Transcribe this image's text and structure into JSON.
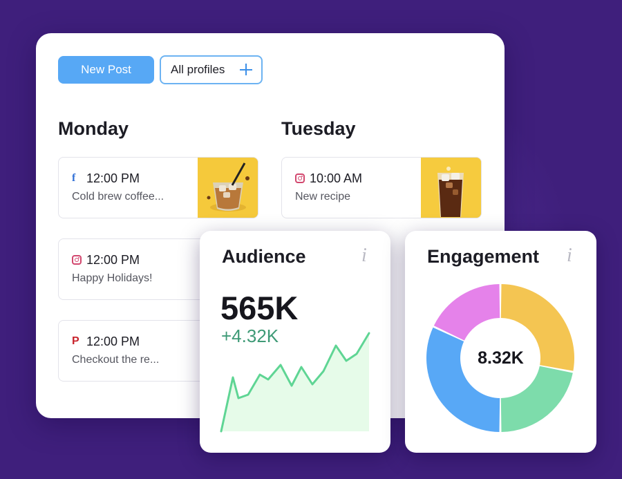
{
  "toolbar": {
    "new_post_label": "New Post",
    "profiles_label": "All profiles"
  },
  "columns": [
    {
      "day": "Monday",
      "posts": [
        {
          "network": "facebook",
          "icon": "facebook-icon",
          "time": "12:00 PM",
          "caption": "Cold brew coffee...",
          "has_thumb": true
        },
        {
          "network": "instagram",
          "icon": "instagram-icon",
          "time": "12:00 PM",
          "caption": "Happy Holidays!",
          "has_thumb": false
        },
        {
          "network": "pinterest",
          "icon": "pinterest-icon",
          "time": "12:00 PM",
          "caption": "Checkout the re...",
          "has_thumb": false
        }
      ]
    },
    {
      "day": "Tuesday",
      "posts": [
        {
          "network": "instagram",
          "icon": "instagram-icon",
          "time": "10:00 AM",
          "caption": "New recipe",
          "has_thumb": true
        }
      ]
    }
  ],
  "audience": {
    "title": "Audience",
    "value": "565K",
    "delta": "+4.32K",
    "line_color": "#5fd594",
    "fill_color": "#e6fbe9"
  },
  "engagement": {
    "title": "Engagement",
    "total": "8.32K",
    "slices": [
      {
        "color": "#f4c552",
        "share": 0.28
      },
      {
        "color": "#7ddcab",
        "share": 0.22
      },
      {
        "color": "#58a8f6",
        "share": 0.32
      },
      {
        "color": "#e582ea",
        "share": 0.18
      }
    ]
  },
  "colors": {
    "background": "#3f1f7c",
    "accent": "#57a8f5"
  }
}
